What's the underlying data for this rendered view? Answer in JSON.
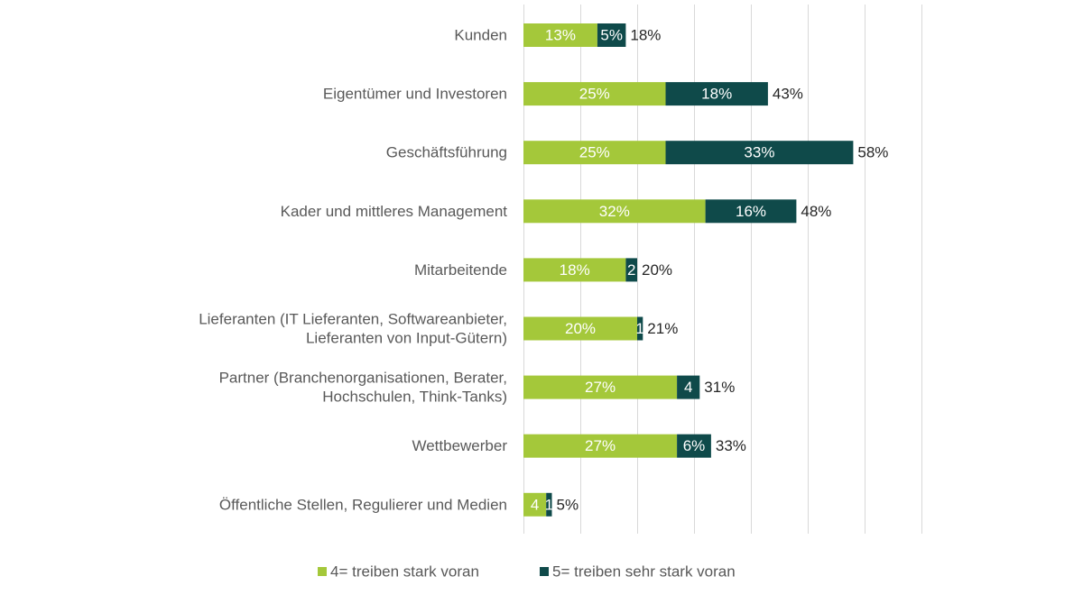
{
  "chart_data": {
    "type": "bar",
    "orientation": "horizontal",
    "stacked": true,
    "categories": [
      [
        "Kunden"
      ],
      [
        "Eigentümer und Investoren"
      ],
      [
        "Geschäftsführung"
      ],
      [
        "Kader und mittleres Management"
      ],
      [
        "Mitarbeitende"
      ],
      [
        "Lieferanten (IT Lieferanten, Softwareanbieter,",
        "Lieferanten von Input-Gütern)"
      ],
      [
        "Partner (Branchenorganisationen, Berater,",
        "Hochschulen, Think-Tanks)"
      ],
      [
        "Wettbewerber"
      ],
      [
        "Öffentliche Stellen, Regulierer und Medien"
      ]
    ],
    "series": [
      {
        "name": "4= treiben stark voran",
        "color": "#a4c83a",
        "values": [
          13,
          25,
          25,
          32,
          18,
          20,
          27,
          27,
          4
        ],
        "labels": [
          "13%",
          "25%",
          "25%",
          "32%",
          "18%",
          "20%",
          "27%",
          "27%",
          "4"
        ]
      },
      {
        "name": "5= treiben sehr stark voran",
        "color": "#0f4a4a",
        "values": [
          5,
          18,
          33,
          16,
          2,
          1,
          4,
          6,
          1
        ],
        "labels": [
          "5%",
          "18%",
          "33%",
          "16%",
          "2",
          "1",
          "4",
          "6%",
          "1"
        ]
      }
    ],
    "totals": [
      "18%",
      "43%",
      "58%",
      "48%",
      "20%",
      "21%",
      "31%",
      "33%",
      "5%"
    ],
    "xlim": [
      0,
      70
    ],
    "grid": true,
    "legend_position": "bottom"
  }
}
